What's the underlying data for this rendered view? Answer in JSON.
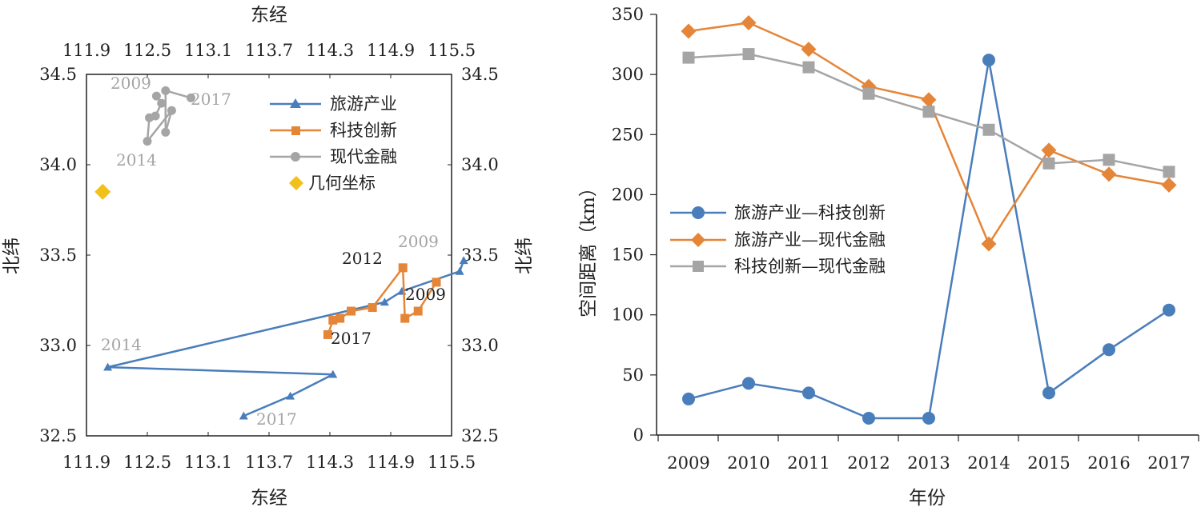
{
  "colors": {
    "blue": "#4a7ebb",
    "orange": "#e58538",
    "gray": "#a5a5a5",
    "gold": "#f2c01b"
  },
  "chart_data": [
    {
      "type": "line",
      "xlabel_top": "东经",
      "xlabel_bottom": "东经",
      "ylabel_left": "北纬",
      "ylabel_right": "北纬",
      "xlim": [
        111.9,
        115.5
      ],
      "ylim": [
        32.5,
        34.5
      ],
      "xticks": [
        "111.9",
        "112.5",
        "113.1",
        "113.7",
        "114.3",
        "114.9",
        "115.5"
      ],
      "yticks": [
        "32.5",
        "33.0",
        "33.5",
        "34.0",
        "34.5"
      ],
      "series": [
        {
          "name": "旅游产业",
          "marker": "triangle",
          "color": "#4a7ebb",
          "points": [
            [
              115.62,
              33.47
            ],
            [
              115.58,
              33.41
            ],
            [
              115.01,
              33.3
            ],
            [
              114.84,
              33.24
            ],
            [
              112.11,
              32.88
            ],
            [
              114.33,
              32.84
            ],
            [
              113.91,
              32.72
            ],
            [
              113.45,
              32.61
            ]
          ]
        },
        {
          "name": "科技创新",
          "marker": "square",
          "color": "#e58538",
          "points": [
            [
              115.35,
              33.35
            ],
            [
              115.17,
              33.19
            ],
            [
              115.04,
              33.15
            ],
            [
              115.02,
              33.43
            ],
            [
              114.72,
              33.21
            ],
            [
              114.51,
              33.19
            ],
            [
              114.4,
              33.15
            ],
            [
              114.33,
              33.14
            ],
            [
              114.28,
              33.06
            ]
          ]
        },
        {
          "name": "现代金融",
          "marker": "circle",
          "color": "#a5a5a5",
          "points": [
            [
              112.59,
              34.38
            ],
            [
              112.64,
              34.34
            ],
            [
              112.58,
              34.27
            ],
            [
              112.52,
              34.26
            ],
            [
              112.5,
              34.13
            ],
            [
              112.74,
              34.3
            ],
            [
              112.68,
              34.18
            ],
            [
              112.68,
              34.41
            ],
            [
              112.93,
              34.37
            ]
          ]
        },
        {
          "name": "几何坐标",
          "marker": "diamond",
          "color": "#f2c01b",
          "points": [
            [
              112.06,
              33.85
            ]
          ]
        }
      ],
      "annotations": [
        {
          "text": "2009",
          "color": "#a5a5a5"
        },
        {
          "text": "2017",
          "color": "#a5a5a5"
        },
        {
          "text": "2014",
          "color": "#a5a5a5"
        },
        {
          "text": "2009",
          "color": "#a5a5a5"
        },
        {
          "text": "2012",
          "color": "#222222"
        },
        {
          "text": "2009",
          "color": "#222222"
        },
        {
          "text": "2017",
          "color": "#222222"
        },
        {
          "text": "2014",
          "color": "#a5a5a5"
        },
        {
          "text": "2017",
          "color": "#a5a5a5"
        }
      ],
      "legend_position": "top-right"
    },
    {
      "type": "line",
      "xlabel": "年份",
      "ylabel": "空间距离（km）",
      "ylim": [
        0,
        350
      ],
      "yticks": [
        "0",
        "50",
        "100",
        "150",
        "200",
        "250",
        "300",
        "350"
      ],
      "categories": [
        "2009",
        "2010",
        "2011",
        "2012",
        "2013",
        "2014",
        "2015",
        "2016",
        "2017"
      ],
      "series": [
        {
          "name": "旅游产业—科技创新",
          "marker": "circle",
          "color": "#4a7ebb",
          "values": [
            30,
            43,
            35,
            14,
            14,
            312,
            35,
            71,
            104
          ]
        },
        {
          "name": "旅游产业—现代金融",
          "marker": "diamond",
          "color": "#e58538",
          "values": [
            336,
            343,
            321,
            290,
            279,
            159,
            237,
            217,
            208
          ]
        },
        {
          "name": "科技创新—现代金融",
          "marker": "square",
          "color": "#a5a5a5",
          "values": [
            314,
            317,
            306,
            284,
            269,
            254,
            226,
            229,
            219
          ]
        }
      ],
      "legend_position": "center-left"
    }
  ]
}
